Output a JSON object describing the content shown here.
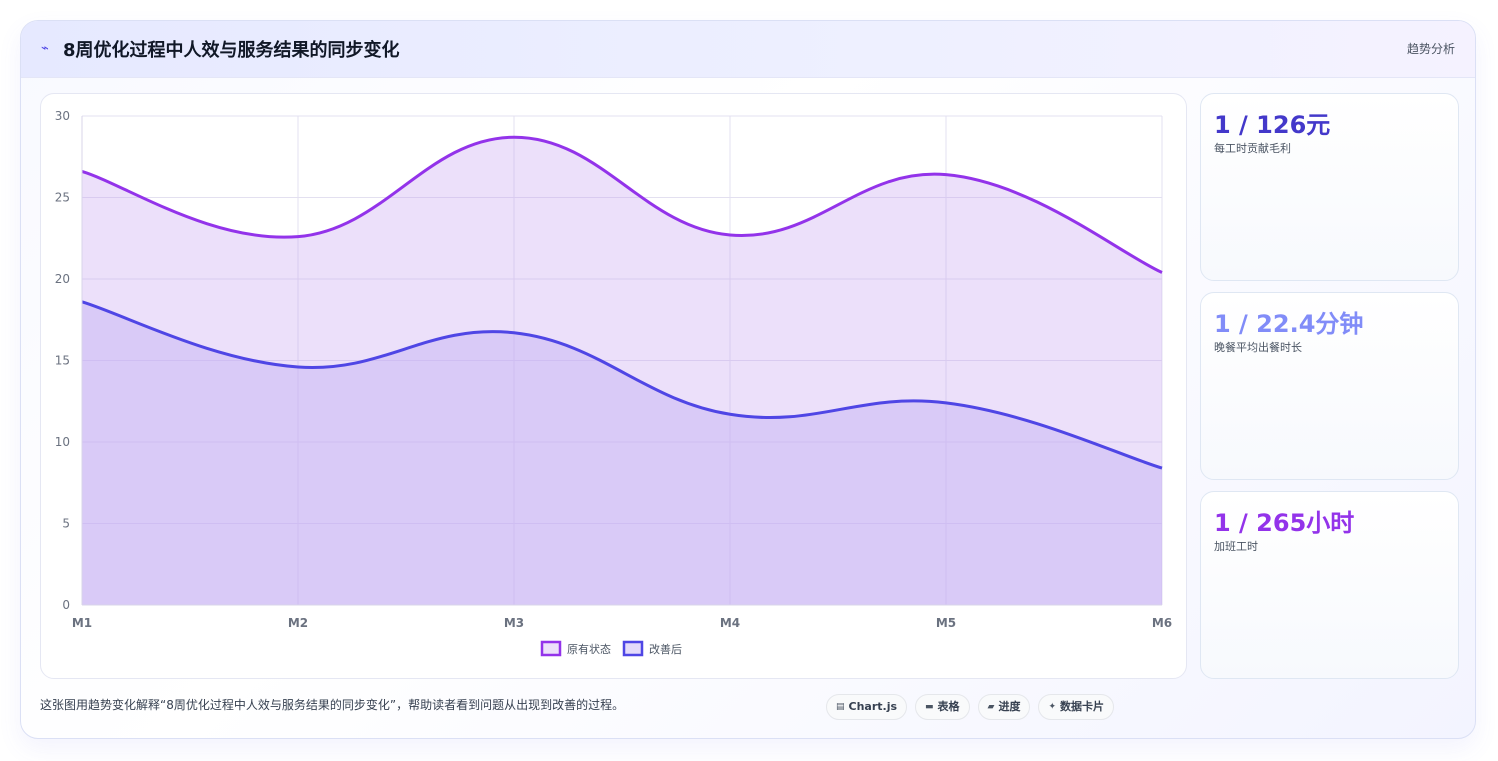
{
  "header": {
    "icon": "trend-line-icon",
    "title": "8周优化过程中人效与服务结果的同步变化",
    "tag": "趋势分析"
  },
  "stats": [
    {
      "value": "1 / 126元",
      "label": "每工时贡献毛利",
      "color": "#4338ca"
    },
    {
      "value": "1 / 22.4分钟",
      "label": "晚餐平均出餐时长",
      "color": "#818cf8"
    },
    {
      "value": "1 / 265小时",
      "label": "加班工时",
      "color": "#9333ea"
    }
  ],
  "footer": {
    "description": "这张图用趋势变化解释“8周优化过程中人效与服务结果的同步变化”，帮助读者看到问题从出现到改善的过程。",
    "chips": [
      {
        "icon": "chart-icon",
        "glyph": "▤",
        "label": "Chart.js"
      },
      {
        "icon": "table-icon",
        "glyph": "▬",
        "label": "表格"
      },
      {
        "icon": "progress-icon",
        "glyph": "▰",
        "label": "进度"
      },
      {
        "icon": "card-icon",
        "glyph": "✦",
        "label": "数据卡片"
      }
    ]
  },
  "chart_data": {
    "type": "area",
    "categories": [
      "M1",
      "M2",
      "M3",
      "M4",
      "M5",
      "M6"
    ],
    "series": [
      {
        "name": "原有状态",
        "values": [
          26.6,
          22.6,
          28.7,
          22.7,
          26.4,
          20.4
        ],
        "color": "#9333ea",
        "fill": "rgba(196,160,240,0.32)"
      },
      {
        "name": "改善后",
        "values": [
          18.6,
          14.6,
          16.7,
          11.7,
          12.4,
          8.4
        ],
        "color": "#4f46e5",
        "fill": "rgba(196,176,245,0.45)"
      }
    ],
    "ylim": [
      0,
      30
    ],
    "yticks": [
      0,
      5,
      10,
      15,
      20,
      25,
      30
    ],
    "grid": true,
    "legend": "bottom"
  }
}
